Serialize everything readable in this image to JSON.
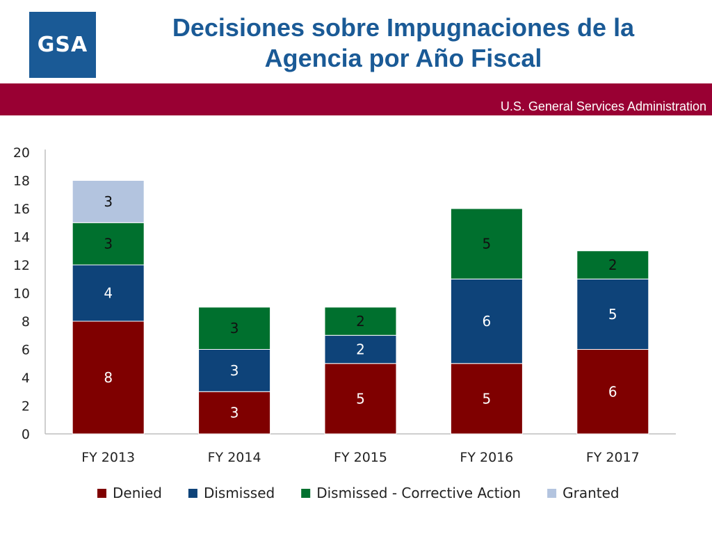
{
  "header": {
    "logo_text": "GSA",
    "title_line1": "Decisiones sobre Impugnaciones de la",
    "title_line2": "Agencia por Año Fiscal",
    "agency": "U.S. General Services Administration"
  },
  "colors": {
    "brand_blue": "#1a5a96",
    "band": "#990033"
  },
  "chart_data": {
    "type": "bar",
    "stacked": true,
    "categories": [
      "FY 2013",
      "FY 2014",
      "FY 2015",
      "FY 2016",
      "FY 2017"
    ],
    "series": [
      {
        "name": "Denied",
        "color": "#7f0000",
        "label_color": "#ffffff",
        "values": [
          8,
          3,
          5,
          5,
          6
        ]
      },
      {
        "name": "Dismissed",
        "color": "#0e4379",
        "label_color": "#ffffff",
        "values": [
          4,
          3,
          2,
          6,
          5
        ]
      },
      {
        "name": "Dismissed - Corrective Action",
        "color": "#00702e",
        "label_color": "#111111",
        "values": [
          3,
          3,
          2,
          5,
          2
        ]
      },
      {
        "name": "Granted",
        "color": "#b3c4df",
        "label_color": "#111111",
        "values": [
          3,
          0,
          0,
          0,
          0
        ]
      }
    ],
    "yticks": [
      0,
      2,
      4,
      6,
      8,
      10,
      12,
      14,
      16,
      18,
      20
    ],
    "ylim": [
      0,
      20
    ],
    "xlabel": "",
    "ylabel": "",
    "grid": false,
    "legend_position": "bottom"
  }
}
